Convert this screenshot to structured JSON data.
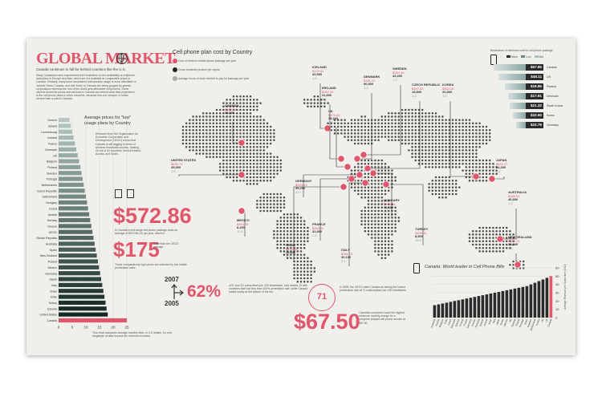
{
  "header": {
    "title": "GLOBAL MARKET",
    "subtitle": "Canada continues to fall far behind countries like the U.S.",
    "intro": "Many Canadians have experienced their frustration on the availability of cellphone data plans in Europe and Asia, which are not available at comparable prices in Canada. Similarly, many have complained that wireless usage is more affordable in 'outside' these Canada, and that 'Early' in Canada are being gouged by greedy corporations whereas the rest of the world gets affordable cell phones. Some citizens found the prices and services in Canada are behind what they experience in the cell phone plans in other countries, because this one cheaper or better service than a plan in Canada."
  },
  "map": {
    "title": "Cell phone plan cost by Country",
    "legend": [
      {
        "label": "Cost of medium mobile phone package per year",
        "color": "#e0566a"
      },
      {
        "label": "Gross domestic product per capita",
        "color": "#222222"
      },
      {
        "label": "Average hours of work needed to pay for package per year",
        "color": "#aaaaaa"
      }
    ],
    "countries": [
      {
        "name": "CANADA",
        "cost": "$572.86",
        "gdp": "39,057",
        "hours": "4.0"
      },
      {
        "name": "ICELAND",
        "cost": "$175.64",
        "gdp": "33,900",
        "hours": "1.5"
      },
      {
        "name": "IRELAND",
        "cost": "$260.95",
        "gdp": "41,800",
        "hours": "2.0"
      },
      {
        "name": "UK",
        "cost": "$475.82",
        "gdp": "35,200",
        "hours": "3.5"
      },
      {
        "name": "DENMARK",
        "cost": "$161.91",
        "gdp": "50,800",
        "hours": "1.4"
      },
      {
        "name": "SWEDEN",
        "cost": "$264.48",
        "gdp": "43,400",
        "hours": "1.5"
      },
      {
        "name": "CZECH REPUBLIC",
        "cost": "$307.83",
        "gdp": "18,800",
        "hours": "4.3"
      },
      {
        "name": "KOREA",
        "cost": "$363.06",
        "gdp": "20,800",
        "hours": "3.5"
      },
      {
        "name": "UNITED STATES",
        "cost": "$635.73",
        "gdp": "45,900",
        "hours": "4.6"
      },
      {
        "name": "JAPAN",
        "cost": "$552.27",
        "gdp": "34,300",
        "hours": "4.4"
      },
      {
        "name": "GERMANY",
        "cost": "$524.03",
        "gdp": "35,200",
        "hours": "3.6"
      },
      {
        "name": "MEXICO",
        "cost": "$303.78",
        "gdp": "8,200",
        "hours": "11.6"
      },
      {
        "name": "HUNGARY",
        "cost": "$218.34",
        "gdp": "11,100",
        "hours": "5.0"
      },
      {
        "name": "FRANCE",
        "cost": "$260.61",
        "gdp": "32,800",
        "hours": "2.5"
      },
      {
        "name": "AUSTRALIA",
        "cost": "$188.51",
        "gdp": "46,800",
        "hours": "1.2"
      },
      {
        "name": "SPAIN",
        "cost": "$475.80",
        "gdp": "28,600",
        "hours": "5.1"
      },
      {
        "name": "ITALY",
        "cost": "$361.74",
        "gdp": "30,100",
        "hours": "3.4"
      },
      {
        "name": "TURKEY",
        "cost": "$528.34",
        "gdp": "8,800",
        "hours": "18.9"
      },
      {
        "name": "NEW ZEALAND",
        "cost": "$408.11",
        "gdp": "29,200",
        "hours": "3.9"
      }
    ]
  },
  "income_panel": {
    "title": "Breakdown of minimum cost for cell phone package",
    "legend": [
      "Minor",
      "Low",
      "Mid"
    ],
    "rows": [
      {
        "label": "Canada",
        "value": "$57.86"
      },
      {
        "label": "US",
        "value": "$48.11"
      },
      {
        "label": "Finland",
        "value": "$19.86"
      },
      {
        "label": "Denmark",
        "value": "$17.91"
      },
      {
        "label": "South Korea",
        "value": "$21.32"
      },
      {
        "label": "Korea",
        "value": "$10.50"
      },
      {
        "label": "Germany",
        "value": "$23.79"
      }
    ]
  },
  "low_usage_chart": {
    "title": "Average prices for \"low\" usage plans by Country",
    "note": "Research from the Organisation for Economic Cooperation and Development (OECD) shows that Canada is still lagging in terms of wireless broadband access, ranking 20 out of 34 countries, behind Ireland, Austria, and Spain.",
    "ticks": [
      "0",
      "5",
      "10",
      "15",
      "20",
      "25"
    ],
    "footnote": "This chart compares average monthly fees, in U.S dollars, for new megabyte of data beyond the minimum included."
  },
  "chart_data": [
    {
      "type": "bar",
      "categories": [
        "Greece",
        "Ireland",
        "Luxembourg",
        "Iceland",
        "France",
        "Denmark",
        "UK",
        "Belgium",
        "Finland",
        "Sweden",
        "Portugal",
        "Netherlands",
        "Czech Republic",
        "Switzerland",
        "Hungary",
        "Korea",
        "Austria",
        "Norway",
        "Greece",
        "OECD",
        "Slovak Republic",
        "Australia",
        "Spain",
        "New Zealand",
        "Poland",
        "Mexico",
        "Germany",
        "Japan",
        "Italy",
        "Israel",
        "Chile",
        "Turkey",
        "Estonia",
        "United States",
        "Canada"
      ],
      "values": [
        4.0,
        4.5,
        5.0,
        5.5,
        6.0,
        6.5,
        7.0,
        7.5,
        8.0,
        8.4,
        8.8,
        9.2,
        9.6,
        10.0,
        10.4,
        10.8,
        11.2,
        11.6,
        12.0,
        12.4,
        12.8,
        13.2,
        13.6,
        14.0,
        14.4,
        14.8,
        15.2,
        15.6,
        16.0,
        16.4,
        16.8,
        17.2,
        17.6,
        18.0,
        25.0
      ],
      "xlim": [
        0,
        25
      ]
    },
    {
      "type": "bar",
      "title": "Canada: World leader in Cell Phone Bills",
      "ylabel": "Average Revenue per Subscriber (USD)",
      "categories": [
        "Australia",
        "Austria",
        "Belgium",
        "Chile",
        "Czech",
        "Denmark",
        "Estonia",
        "Finland",
        "France",
        "Germany",
        "Greece",
        "Hungary",
        "Iceland",
        "Ireland",
        "Israel",
        "Italy",
        "Japan",
        "Korea",
        "Mexico",
        "NZ",
        "Norway",
        "Poland",
        "Portugal",
        "Spain",
        "Sweden",
        "Switzerland",
        "Turkey",
        "UK",
        "US",
        "Canada"
      ],
      "values": [
        15,
        16,
        17,
        18,
        19,
        20,
        21,
        22,
        23,
        24,
        25,
        26,
        27,
        28,
        29,
        30,
        31,
        32,
        33,
        34,
        35,
        36,
        37,
        38,
        40,
        42,
        44,
        46,
        48,
        50
      ],
      "ylim": [
        0,
        60
      ],
      "ticks": [
        "0",
        "10",
        "20",
        "30",
        "40",
        "50",
        "60"
      ]
    }
  ],
  "stats": {
    "cost_big": "$572.86",
    "cost_text": "In Canada a mid-range cell phone package costs an average of $572.86 US per year, which is",
    "more_big": "$175",
    "more_label": "more than the OECD average",
    "more_text": "These comparatively high prices are matched by low mobile penetration rates.",
    "year_top": "2007",
    "year_bottom": "2005",
    "pct": "62%",
    "pct_text": "uOC and 3G subscribers per 100 inhabitants, fully ranked 19 with countries that had less than 100% penetration rate, while Canada trailed nearly at the bottom of the list.",
    "circle_num": "71",
    "circle_text": "In 2009, the OECD rated Canada as having the lowest penetration rate at 71 subscriptions per 100 inhabitants.",
    "price_big": "$67.50",
    "price_text": "Canadian customers have the highest minimum monthly charge for a complete prepaid cell phone service at $67.50."
  },
  "colors": {
    "accent": "#e0566a",
    "dark": "#2b2b2b",
    "teal": "#6b8a88",
    "bg": "#f0efeb"
  }
}
